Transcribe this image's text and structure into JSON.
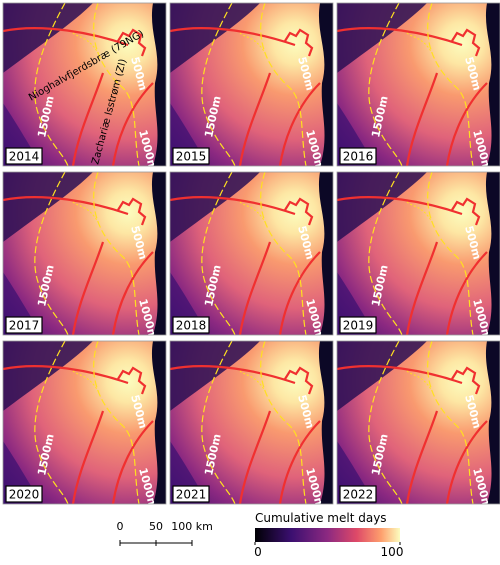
{
  "panels": [
    {
      "year": "2014"
    },
    {
      "year": "2015"
    },
    {
      "year": "2016"
    },
    {
      "year": "2017"
    },
    {
      "year": "2018"
    },
    {
      "year": "2019"
    },
    {
      "year": "2020"
    },
    {
      "year": "2021"
    },
    {
      "year": "2022"
    }
  ],
  "contour_labels": [
    "500m",
    "1000m",
    "1500m"
  ],
  "glacier_labels": [
    "Nioghalvfjerdsbræ (79NG)",
    "Zachariæ Isstrøm (ZI)"
  ],
  "scale_bar": {
    "labels": [
      "0",
      "50",
      "100 km"
    ]
  },
  "colorbar": {
    "title": "Cumulative melt days",
    "ticks": [
      0,
      100
    ]
  }
}
